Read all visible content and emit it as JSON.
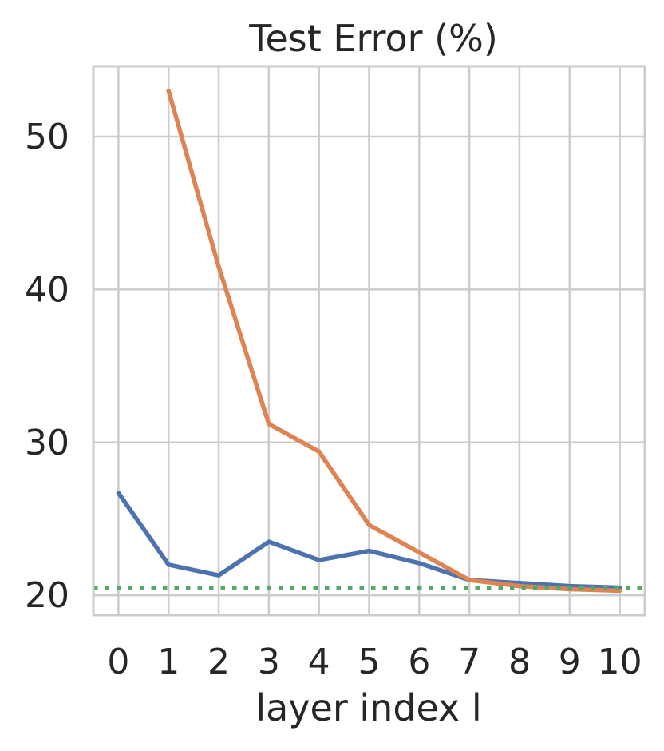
{
  "chart_data": {
    "type": "line",
    "title": "Test Error (%)",
    "xlabel": "layer index l",
    "ylabel": "",
    "x": [
      0,
      1,
      2,
      3,
      4,
      5,
      6,
      7,
      8,
      9,
      10
    ],
    "x_tick_labels": [
      "0",
      "1",
      "2",
      "3",
      "4",
      "5",
      "6",
      "7",
      "8",
      "9",
      "10"
    ],
    "y_ticks": [
      20,
      30,
      40,
      50
    ],
    "y_tick_labels": [
      "20",
      "30",
      "40",
      "50"
    ],
    "xlim": [
      -0.5,
      10.5
    ],
    "ylim": [
      18.7,
      54.6
    ],
    "grid": true,
    "legend": "none",
    "series": [
      {
        "color": "#4c72b0",
        "style": "solid",
        "x": [
          0,
          1,
          2,
          3,
          4,
          5,
          6,
          7,
          8,
          9,
          10
        ],
        "values": [
          26.7,
          22.0,
          21.3,
          23.5,
          22.3,
          22.9,
          22.1,
          21.0,
          20.8,
          20.6,
          20.5
        ]
      },
      {
        "color": "#dd8452",
        "style": "solid",
        "x": [
          1,
          2,
          3,
          4,
          5,
          6,
          7,
          8,
          9,
          10
        ],
        "values": [
          53.0,
          41.5,
          31.2,
          29.4,
          24.6,
          22.8,
          21.0,
          20.6,
          20.4,
          20.3
        ]
      },
      {
        "color": "#55a868",
        "style": "dotted",
        "x": [
          -0.5,
          10.5
        ],
        "values": [
          20.5,
          20.5
        ]
      }
    ]
  }
}
